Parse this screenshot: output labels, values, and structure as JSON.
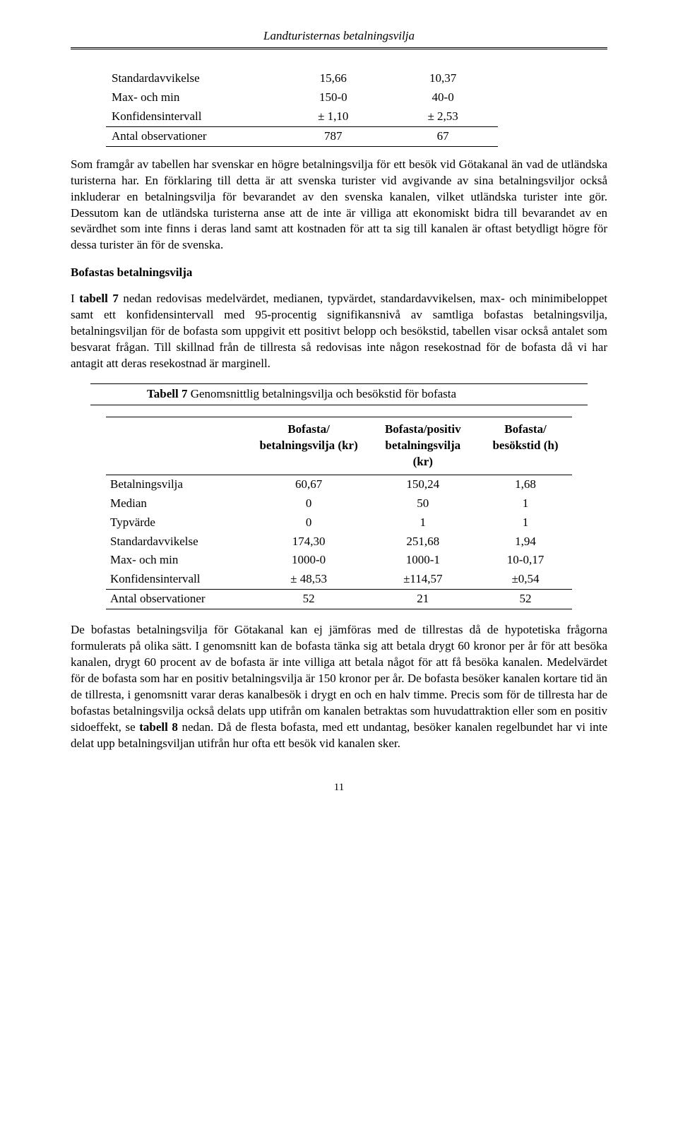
{
  "header": {
    "title": "Landturisternas betalningsvilja"
  },
  "table1": {
    "rows": [
      {
        "label": "Standardavvikelse",
        "c1": "15,66",
        "c2": "10,37"
      },
      {
        "label": "Max- och min",
        "c1": "150-0",
        "c2": "40-0"
      },
      {
        "label": "Konfidensintervall",
        "c1": "± 1,10",
        "c2": "± 2,53"
      }
    ],
    "footer": {
      "label": "Antal observationer",
      "c1": "787",
      "c2": "67"
    }
  },
  "para1": "Som framgår av tabellen har svenskar en högre betalningsvilja för ett besök vid Götakanal än vad de utländska turisterna har. En förklaring till detta är att svenska turister vid avgivande av sina betalningsviljor också inkluderar en betalningsvilja för bevarandet av den svenska kanalen, vilket utländska turister inte gör. Dessutom kan de utländska turisterna anse att de inte är villiga att ekonomiskt bidra till bevarandet av en sevärdhet som inte finns i deras land samt att kostnaden för att ta sig till kanalen är oftast betydligt högre för dessa turister än för de svenska.",
  "subhead": "Bofastas betalningsvilja",
  "para2_prefix": "I ",
  "para2_bold": "tabell 7",
  "para2_rest": " nedan redovisas medelvärdet, medianen, typvärdet, standardavvikelsen, max- och minimibeloppet samt ett konfidensintervall med 95-procentig signifikansnivå av samtliga bofastas betalningsvilja, betalningsviljan för de bofasta som uppgivit ett positivt belopp och besökstid, tabellen visar också antalet som besvarat frågan. Till skillnad från de tillresta så redovisas inte någon resekostnad för de bofasta då vi har antagit att deras resekostnad är marginell.",
  "table2": {
    "caption_prefix": "Tabell 7",
    "caption_rest": " Genomsnittlig betalningsvilja och besökstid för bofasta",
    "head": {
      "c1": "",
      "c2a": "Bofasta/",
      "c2b": "betalningsvilja (kr)",
      "c3a": "Bofasta/positiv",
      "c3b": "betalningsvilja",
      "c3c": "(kr)",
      "c4a": "Bofasta/",
      "c4b": "besökstid (h)"
    },
    "rows": [
      {
        "label": "Betalningsvilja",
        "c1": "60,67",
        "c2": "150,24",
        "c3": "1,68"
      },
      {
        "label": "Median",
        "c1": "0",
        "c2": "50",
        "c3": "1"
      },
      {
        "label": "Typvärde",
        "c1": "0",
        "c2": "1",
        "c3": "1"
      },
      {
        "label": "Standardavvikelse",
        "c1": "174,30",
        "c2": "251,68",
        "c3": "1,94"
      },
      {
        "label": "Max- och min",
        "c1": "1000-0",
        "c2": "1000-1",
        "c3": "10-0,17"
      },
      {
        "label": "Konfidensintervall",
        "c1": "± 48,53",
        "c2": "±114,57",
        "c3": "±0,54"
      }
    ],
    "footer": {
      "label": "Antal observationer",
      "c1": "52",
      "c2": "21",
      "c3": "52"
    }
  },
  "para3_part1": "De bofastas betalningsvilja för Götakanal kan ej jämföras med de tillrestas då de hypotetiska frågorna formulerats på olika sätt. I genomsnitt kan de bofasta tänka sig att betala drygt 60 kronor per år för att besöka kanalen, drygt 60 procent av de bofasta är inte villiga att betala något för att få besöka kanalen. Medelvärdet för de bofasta som har en positiv betalningsvilja är 150 kronor per år. De bofasta besöker kanalen kortare tid än de tillresta, i genomsnitt varar deras kanalbesök i drygt en och en halv timme. Precis som för de tillresta har de bofastas betalningsvilja också delats upp utifrån om kanalen betraktas som huvudattraktion eller som en positiv sidoeffekt, se ",
  "para3_bold": "tabell 8",
  "para3_part2": " nedan. Då de flesta bofasta, med ett undantag, besöker kanalen regelbundet har vi inte delat upp betalningsviljan utifrån hur ofta ett besök vid kanalen sker.",
  "pagenum": "11",
  "style": {
    "colors": {
      "text": "#000000",
      "bg": "#ffffff",
      "rule": "#000000"
    },
    "fontsizes": {
      "body": 17,
      "header": 17,
      "pagenum": 15
    }
  }
}
